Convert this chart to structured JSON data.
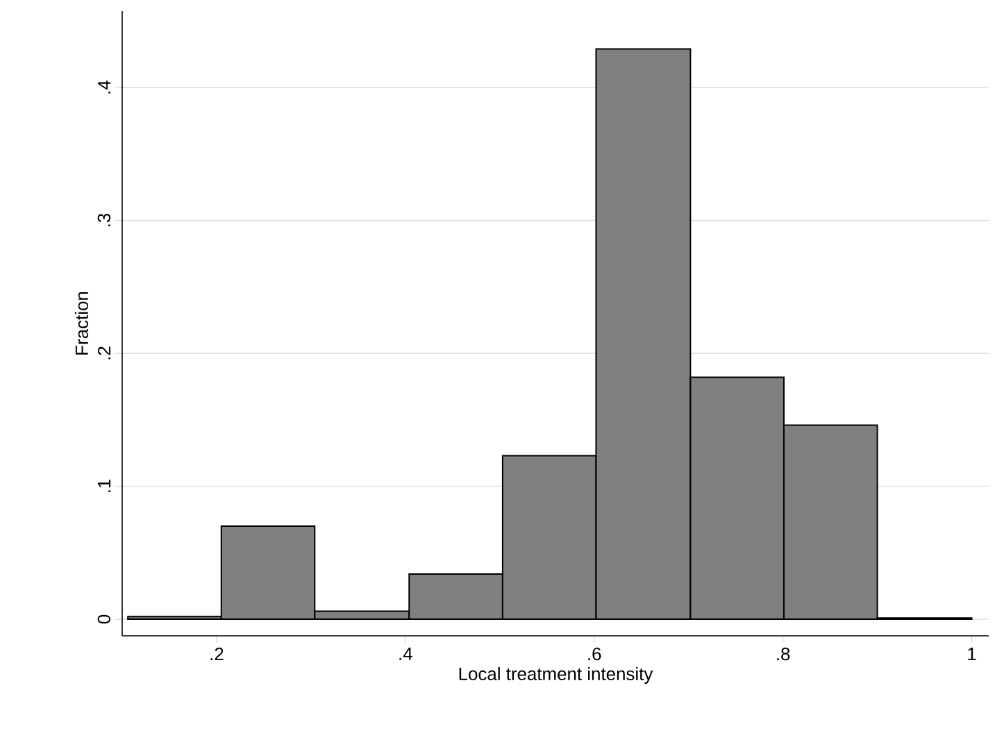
{
  "chart_data": {
    "type": "histogram",
    "xlabel": "Local treatment intensity",
    "ylabel": "Fraction",
    "bins": [
      0.106,
      0.205,
      0.304,
      0.404,
      0.503,
      0.602,
      0.702,
      0.801,
      0.9,
      1.0
    ],
    "values": [
      0.002,
      0.07,
      0.006,
      0.034,
      0.123,
      0.429,
      0.182,
      0.146,
      0.001
    ],
    "color": "#808080",
    "xlim": [
      0.1,
      1.018
    ],
    "ylim": [
      -0.0125,
      0.4575
    ],
    "xticks": [
      {
        "value": 0.2,
        "label": ".2"
      },
      {
        "value": 0.4,
        "label": ".4"
      },
      {
        "value": 0.6,
        "label": ".6"
      },
      {
        "value": 0.8,
        "label": ".8"
      },
      {
        "value": 1,
        "label": "1"
      }
    ],
    "yticks": [
      {
        "value": 0,
        "label": "0"
      },
      {
        "value": 0.1,
        "label": ".1"
      },
      {
        "value": 0.2,
        "label": ".2"
      },
      {
        "value": 0.3,
        "label": ".3"
      },
      {
        "value": 0.4,
        "label": ".4"
      }
    ],
    "grid": "y"
  }
}
